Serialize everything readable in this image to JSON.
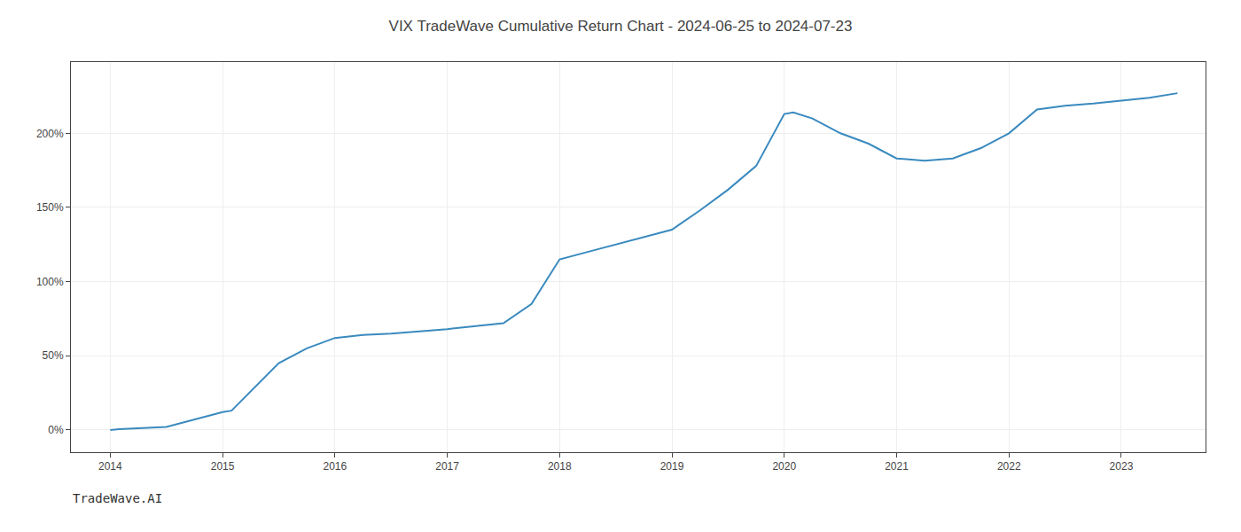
{
  "chart_data": {
    "type": "line",
    "title": "VIX TradeWave Cumulative Return Chart - 2024-06-25 to 2024-07-23",
    "annotations": [
      "TradeWave.AI"
    ],
    "x": [
      2014.0,
      2014.08,
      2014.5,
      2015.0,
      2015.08,
      2015.5,
      2015.75,
      2016.0,
      2016.25,
      2016.5,
      2017.0,
      2017.25,
      2017.5,
      2017.75,
      2018.0,
      2018.25,
      2018.5,
      2018.75,
      2019.0,
      2019.25,
      2019.5,
      2019.75,
      2020.0,
      2020.08,
      2020.25,
      2020.5,
      2020.75,
      2021.0,
      2021.25,
      2021.5,
      2021.75,
      2022.0,
      2022.25,
      2022.5,
      2022.75,
      2023.0,
      2023.25,
      2023.5
    ],
    "values": [
      0.0,
      0.5,
      2.0,
      12.0,
      13.0,
      45.0,
      55.0,
      62.0,
      64.0,
      65.0,
      68.0,
      70.0,
      72.0,
      85.0,
      115.0,
      120.0,
      125.0,
      130.0,
      135.0,
      148.0,
      162.0,
      178.0,
      213.0,
      214.0,
      210.0,
      200.0,
      193.0,
      183.0,
      181.5,
      183.0,
      190.0,
      200.0,
      216.0,
      218.5,
      220.0,
      222.0,
      224.0,
      227.0
    ],
    "color": "#3a8abf",
    "xlim": [
      2013.65,
      2023.75
    ],
    "xticks": [
      2014,
      2015,
      2016,
      2017,
      2018,
      2019,
      2020,
      2021,
      2022,
      2023
    ],
    "ylim": [
      -15,
      248
    ],
    "yticks": [
      {
        "value": 0,
        "label": "0%"
      },
      {
        "value": 50,
        "label": "50%"
      },
      {
        "value": 100,
        "label": "100%"
      },
      {
        "value": 150,
        "label": "150%"
      },
      {
        "value": 200,
        "label": "200%"
      }
    ],
    "grid": true
  }
}
